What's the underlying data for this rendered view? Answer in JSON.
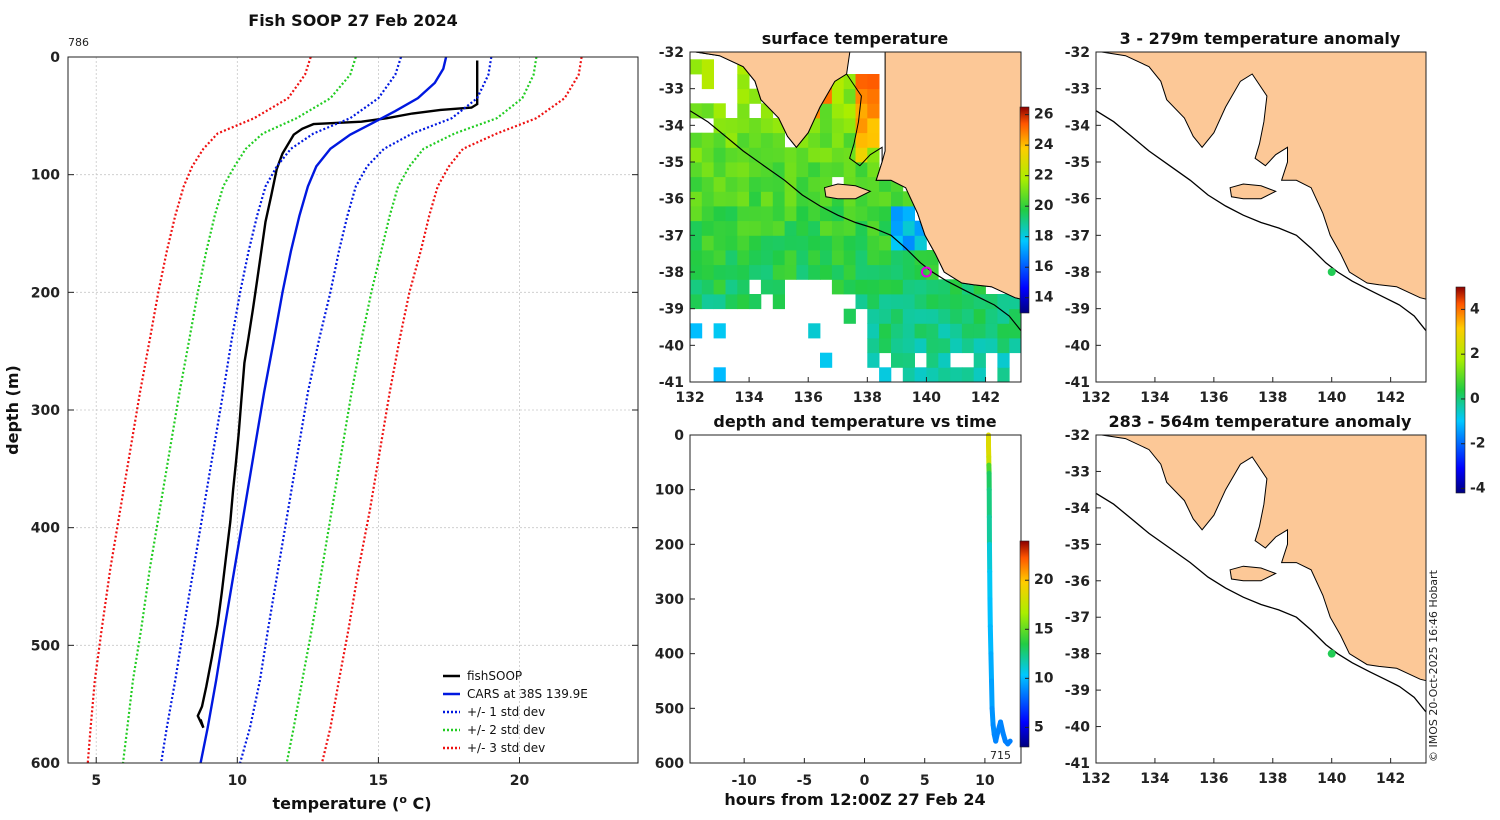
{
  "colors": {
    "land": "#fcc897",
    "fishsoop": "#000000",
    "cars": "#0018e0",
    "std1": "#0018e0",
    "std2": "#22cc22",
    "std3": "#ee1111"
  },
  "chart_data": [
    {
      "id": "profile",
      "type": "line",
      "title": "Fish SOOP 27 Feb 2024",
      "corner_label": "786",
      "xlabel": "temperature (",
      "xlabel_sup": "o",
      "xlabel_end": " C)",
      "ylabel": "depth (m)",
      "xlim": [
        4,
        24.2
      ],
      "ylim": [
        600,
        0
      ],
      "xticks": [
        5,
        10,
        15,
        20
      ],
      "yticks": [
        0,
        100,
        200,
        300,
        400,
        500,
        600
      ],
      "legend_position": "bottom-right",
      "legend": [
        "fishSOOP",
        "CARS at 38S 139.9E",
        "+/- 1 std dev",
        "+/- 2 std dev",
        "+/- 3 std dev"
      ],
      "series": [
        {
          "name": "fishSOOP",
          "style": "solid",
          "color_key": "fishsoop",
          "points": [
            [
              18.5,
              3
            ],
            [
              18.5,
              40
            ],
            [
              18.3,
              43
            ],
            [
              17.2,
              45
            ],
            [
              16.2,
              48
            ],
            [
              15.3,
              52
            ],
            [
              14.4,
              55
            ],
            [
              13.5,
              56
            ],
            [
              12.7,
              57
            ],
            [
              12.3,
              61
            ],
            [
              12.0,
              66
            ],
            [
              11.8,
              74
            ],
            [
              11.6,
              82
            ],
            [
              11.4,
              95
            ],
            [
              11.2,
              118
            ],
            [
              11.0,
              140
            ],
            [
              10.85,
              165
            ],
            [
              10.7,
              190
            ],
            [
              10.55,
              215
            ],
            [
              10.4,
              238
            ],
            [
              10.25,
              260
            ],
            [
              10.15,
              290
            ],
            [
              10.05,
              320
            ],
            [
              9.95,
              345
            ],
            [
              9.85,
              368
            ],
            [
              9.75,
              395
            ],
            [
              9.6,
              425
            ],
            [
              9.45,
              455
            ],
            [
              9.3,
              482
            ],
            [
              9.1,
              510
            ],
            [
              8.9,
              535
            ],
            [
              8.75,
              552
            ],
            [
              8.6,
              560
            ],
            [
              8.8,
              570
            ],
            [
              8.7,
              563
            ]
          ]
        },
        {
          "name": "CARS at 38S 139.9E",
          "style": "solid",
          "color_key": "cars",
          "points": [
            [
              17.4,
              0
            ],
            [
              17.3,
              10
            ],
            [
              17.0,
              22
            ],
            [
              16.4,
              35
            ],
            [
              15.6,
              46
            ],
            [
              14.8,
              56
            ],
            [
              14.0,
              66
            ],
            [
              13.3,
              78
            ],
            [
              12.8,
              93
            ],
            [
              12.5,
              110
            ],
            [
              12.2,
              135
            ],
            [
              11.9,
              165
            ],
            [
              11.6,
              200
            ],
            [
              11.3,
              240
            ],
            [
              10.95,
              285
            ],
            [
              10.6,
              335
            ],
            [
              10.25,
              385
            ],
            [
              9.9,
              435
            ],
            [
              9.55,
              485
            ],
            [
              9.25,
              530
            ],
            [
              8.95,
              570
            ],
            [
              8.7,
              600
            ]
          ]
        },
        {
          "name": "+/- 1 std dev",
          "style": "dotted",
          "color_key": "std1",
          "points": [
            [
              15.8,
              0
            ],
            [
              15.6,
              15
            ],
            [
              15.0,
              35
            ],
            [
              14.0,
              52
            ],
            [
              12.7,
              65
            ],
            [
              11.9,
              78
            ],
            [
              11.4,
              93
            ],
            [
              11.0,
              110
            ],
            [
              10.7,
              135
            ],
            [
              10.4,
              165
            ],
            [
              10.1,
              200
            ],
            [
              9.8,
              240
            ],
            [
              9.5,
              285
            ],
            [
              9.15,
              335
            ],
            [
              8.8,
              385
            ],
            [
              8.45,
              435
            ],
            [
              8.1,
              485
            ],
            [
              7.8,
              530
            ],
            [
              7.5,
              570
            ],
            [
              7.3,
              600
            ]
          ]
        },
        {
          "name": "+/- 1 std dev",
          "style": "dotted",
          "color_key": "std1",
          "points": [
            [
              19.0,
              0
            ],
            [
              18.9,
              15
            ],
            [
              18.5,
              35
            ],
            [
              17.6,
              52
            ],
            [
              16.2,
              65
            ],
            [
              15.2,
              78
            ],
            [
              14.6,
              93
            ],
            [
              14.2,
              110
            ],
            [
              13.9,
              135
            ],
            [
              13.6,
              165
            ],
            [
              13.3,
              200
            ],
            [
              12.9,
              240
            ],
            [
              12.5,
              285
            ],
            [
              12.15,
              335
            ],
            [
              11.8,
              385
            ],
            [
              11.45,
              435
            ],
            [
              11.1,
              485
            ],
            [
              10.8,
              530
            ],
            [
              10.45,
              570
            ],
            [
              10.1,
              600
            ]
          ]
        },
        {
          "name": "+/- 2 std dev",
          "style": "dotted",
          "color_key": "std2",
          "points": [
            [
              14.2,
              0
            ],
            [
              14.0,
              15
            ],
            [
              13.3,
              35
            ],
            [
              12.1,
              52
            ],
            [
              10.9,
              65
            ],
            [
              10.3,
              78
            ],
            [
              9.9,
              93
            ],
            [
              9.5,
              110
            ],
            [
              9.2,
              135
            ],
            [
              8.9,
              165
            ],
            [
              8.6,
              200
            ],
            [
              8.3,
              240
            ],
            [
              7.95,
              285
            ],
            [
              7.6,
              335
            ],
            [
              7.25,
              385
            ],
            [
              6.9,
              435
            ],
            [
              6.6,
              485
            ],
            [
              6.3,
              530
            ],
            [
              6.1,
              570
            ],
            [
              5.95,
              600
            ]
          ]
        },
        {
          "name": "+/- 2 std dev",
          "style": "dotted",
          "color_key": "std2",
          "points": [
            [
              20.6,
              0
            ],
            [
              20.5,
              15
            ],
            [
              20.1,
              35
            ],
            [
              19.2,
              52
            ],
            [
              17.7,
              65
            ],
            [
              16.6,
              78
            ],
            [
              16.1,
              93
            ],
            [
              15.7,
              110
            ],
            [
              15.4,
              135
            ],
            [
              15.1,
              165
            ],
            [
              14.75,
              200
            ],
            [
              14.4,
              240
            ],
            [
              14.05,
              285
            ],
            [
              13.7,
              335
            ],
            [
              13.35,
              385
            ],
            [
              13.0,
              435
            ],
            [
              12.65,
              485
            ],
            [
              12.3,
              530
            ],
            [
              12.0,
              570
            ],
            [
              11.75,
              600
            ]
          ]
        },
        {
          "name": "+/- 3 std dev",
          "style": "dotted",
          "color_key": "std3",
          "points": [
            [
              12.6,
              0
            ],
            [
              12.4,
              15
            ],
            [
              11.8,
              35
            ],
            [
              10.6,
              52
            ],
            [
              9.3,
              65
            ],
            [
              8.8,
              78
            ],
            [
              8.4,
              93
            ],
            [
              8.1,
              110
            ],
            [
              7.8,
              135
            ],
            [
              7.5,
              165
            ],
            [
              7.2,
              200
            ],
            [
              6.9,
              240
            ],
            [
              6.55,
              285
            ],
            [
              6.2,
              335
            ],
            [
              5.85,
              385
            ],
            [
              5.5,
              435
            ],
            [
              5.2,
              485
            ],
            [
              4.95,
              530
            ],
            [
              4.8,
              570
            ],
            [
              4.7,
              600
            ]
          ]
        },
        {
          "name": "+/- 3 std dev",
          "style": "dotted",
          "color_key": "std3",
          "points": [
            [
              22.2,
              0
            ],
            [
              22.1,
              15
            ],
            [
              21.6,
              35
            ],
            [
              20.6,
              52
            ],
            [
              19.2,
              65
            ],
            [
              18.0,
              78
            ],
            [
              17.5,
              93
            ],
            [
              17.1,
              110
            ],
            [
              16.8,
              135
            ],
            [
              16.5,
              165
            ],
            [
              16.1,
              200
            ],
            [
              15.75,
              240
            ],
            [
              15.4,
              285
            ],
            [
              15.05,
              335
            ],
            [
              14.7,
              385
            ],
            [
              14.3,
              435
            ],
            [
              13.95,
              485
            ],
            [
              13.6,
              530
            ],
            [
              13.3,
              570
            ],
            [
              13.0,
              600
            ]
          ]
        }
      ]
    },
    {
      "id": "sst_map",
      "type": "heatmap",
      "title": "surface temperature",
      "xlim": [
        132,
        143.2
      ],
      "ylim": [
        -41,
        -32
      ],
      "xticks": [
        132,
        134,
        136,
        138,
        140,
        142
      ],
      "yticks": [
        -32,
        -33,
        -34,
        -35,
        -36,
        -37,
        -38,
        -39,
        -40,
        -41
      ],
      "colorbar": {
        "min": 13,
        "max": 26.5,
        "ticks": [
          14,
          16,
          18,
          20,
          22,
          24,
          26
        ]
      },
      "marker": {
        "lon": 140,
        "lat": -38,
        "style": "magenta-circle"
      }
    },
    {
      "id": "time_depth",
      "type": "scatter",
      "title": "depth and temperature vs time",
      "xlabel": "hours from 12:00Z 27 Feb 24",
      "xlim": [
        -14.5,
        13
      ],
      "ylim": [
        600,
        0
      ],
      "xticks": [
        -10,
        -5,
        0,
        5,
        10
      ],
      "yticks": [
        0,
        100,
        200,
        300,
        400,
        500,
        600
      ],
      "end_label": "715",
      "colorbar": {
        "min": 3,
        "max": 24,
        "ticks": [
          5,
          10,
          15,
          20
        ]
      },
      "points": [
        [
          10.3,
          0,
          18.5
        ],
        [
          10.3,
          20,
          18.5
        ],
        [
          10.32,
          40,
          18.0
        ],
        [
          10.33,
          55,
          14.5
        ],
        [
          10.35,
          70,
          13.0
        ],
        [
          10.36,
          100,
          12.5
        ],
        [
          10.37,
          150,
          12.0
        ],
        [
          10.38,
          200,
          11.0
        ],
        [
          10.4,
          250,
          10.5
        ],
        [
          10.42,
          300,
          10.2
        ],
        [
          10.45,
          350,
          10.0
        ],
        [
          10.5,
          400,
          9.7
        ],
        [
          10.55,
          450,
          9.4
        ],
        [
          10.6,
          500,
          9.1
        ],
        [
          10.68,
          530,
          8.9
        ],
        [
          10.78,
          548,
          8.8
        ],
        [
          10.9,
          560,
          8.7
        ],
        [
          11.05,
          545,
          8.7
        ],
        [
          11.3,
          525,
          8.7
        ],
        [
          11.5,
          545,
          8.7
        ],
        [
          11.7,
          560,
          8.6
        ],
        [
          11.9,
          565,
          8.6
        ],
        [
          12.1,
          560,
          8.6
        ]
      ]
    },
    {
      "id": "anom_shallow",
      "type": "heatmap",
      "title": "3 - 279m temperature anomaly",
      "xlim": [
        132,
        143.2
      ],
      "ylim": [
        -41,
        -32
      ],
      "xticks": [
        132,
        134,
        136,
        138,
        140,
        142
      ],
      "yticks": [
        -32,
        -33,
        -34,
        -35,
        -36,
        -37,
        -38,
        -39,
        -40,
        -41
      ],
      "marker": {
        "lon": 140,
        "lat": -38
      }
    },
    {
      "id": "anom_deep",
      "type": "heatmap",
      "title": "283 - 564m temperature anomaly",
      "xlim": [
        132,
        143.2
      ],
      "ylim": [
        -41,
        -32
      ],
      "xticks": [
        132,
        134,
        136,
        138,
        140,
        142
      ],
      "yticks": [
        -32,
        -33,
        -34,
        -35,
        -36,
        -37,
        -38,
        -39,
        -40,
        -41
      ],
      "marker": {
        "lon": 140,
        "lat": -38
      },
      "colorbar": {
        "min": -4.2,
        "max": 5,
        "ticks": [
          -4,
          -2,
          0,
          2,
          4
        ]
      }
    }
  ],
  "credit": "© IMOS 20-Oct-2025 16:46 Hobart"
}
